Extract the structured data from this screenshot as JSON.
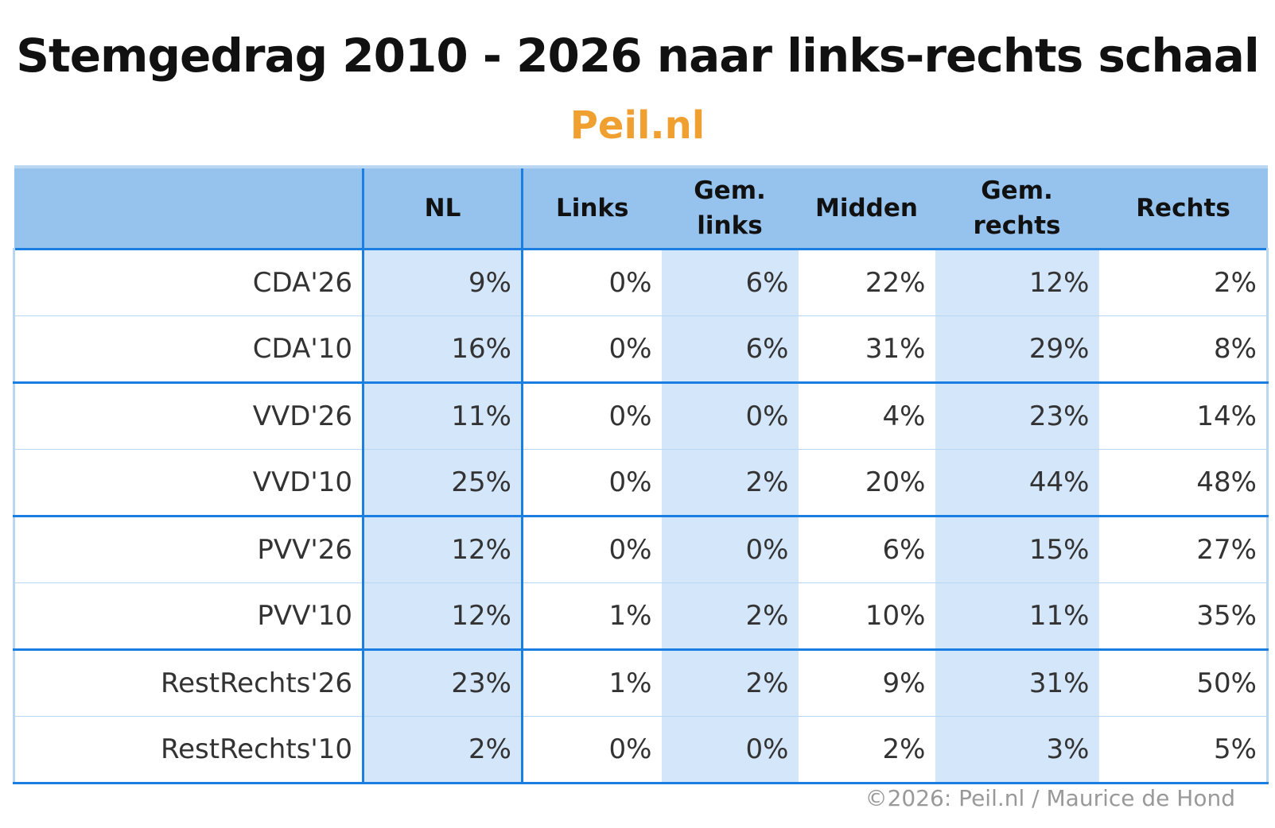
{
  "title": "Stemgedrag 2010 - 2026 naar links-rechts schaal",
  "subtitle": "Peil.nl",
  "table": {
    "columns": [
      "NL",
      "Links",
      "Gem. links",
      "Midden",
      "Gem. rechts",
      "Rechts"
    ],
    "rows": [
      {
        "label": "CDA'26",
        "cells": [
          "9%",
          "0%",
          "6%",
          "22%",
          "12%",
          "2%"
        ]
      },
      {
        "label": "CDA'10",
        "cells": [
          "16%",
          "0%",
          "6%",
          "31%",
          "29%",
          "8%"
        ]
      },
      {
        "label": "VVD'26",
        "cells": [
          "11%",
          "0%",
          "0%",
          "4%",
          "23%",
          "14%"
        ]
      },
      {
        "label": "VVD'10",
        "cells": [
          "25%",
          "0%",
          "2%",
          "20%",
          "44%",
          "48%"
        ]
      },
      {
        "label": "PVV'26",
        "cells": [
          "12%",
          "0%",
          "0%",
          "6%",
          "15%",
          "27%"
        ]
      },
      {
        "label": "PVV'10",
        "cells": [
          "12%",
          "1%",
          "2%",
          "10%",
          "11%",
          "35%"
        ]
      },
      {
        "label": "RestRechts'26",
        "cells": [
          "23%",
          "1%",
          "2%",
          "9%",
          "31%",
          "50%"
        ]
      },
      {
        "label": "RestRechts'10",
        "cells": [
          "2%",
          "0%",
          "0%",
          "2%",
          "3%",
          "5%"
        ]
      }
    ]
  },
  "footer": "©2026: Peil.nl / Maurice de Hond"
}
